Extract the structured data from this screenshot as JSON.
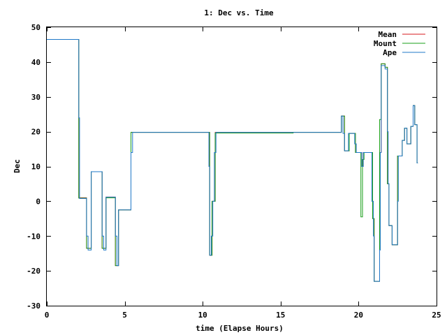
{
  "chart_data": {
    "type": "line",
    "title": "1: Dec vs. Time",
    "xlabel": "time (Elapse Hours)",
    "ylabel": "Dec",
    "xlim": [
      0,
      25
    ],
    "ylim": [
      -30,
      50
    ],
    "xticks": [
      0,
      5,
      10,
      15,
      20,
      25
    ],
    "yticks": [
      -30,
      -20,
      -10,
      0,
      10,
      20,
      30,
      40,
      50
    ],
    "grid": false,
    "legend": "top-right",
    "series": [
      {
        "name": "Mean",
        "color": "#d7191c",
        "points": [
          [
            0,
            46.5
          ],
          [
            2.05,
            46.5
          ],
          [
            2.05,
            1.0
          ],
          [
            2.55,
            1.0
          ],
          [
            2.55,
            -13.5
          ],
          [
            2.85,
            -13.5
          ],
          [
            2.85,
            8.5
          ],
          [
            3.55,
            8.5
          ],
          [
            3.55,
            -13.5
          ],
          [
            3.8,
            -13.5
          ],
          [
            3.8,
            1.2
          ],
          [
            4.4,
            1.2
          ],
          [
            4.4,
            -18.5
          ],
          [
            4.6,
            -18.5
          ],
          [
            4.6,
            -2.5
          ],
          [
            5.4,
            -2.5
          ],
          [
            5.4,
            19.8
          ],
          [
            10.45,
            19.8
          ],
          [
            10.45,
            -15.5
          ],
          [
            10.6,
            -15.5
          ],
          [
            10.6,
            0
          ],
          [
            10.8,
            0
          ],
          [
            10.8,
            19.8
          ],
          [
            15.8,
            19.8
          ],
          [
            15.8,
            19.8
          ],
          [
            18.9,
            19.8
          ],
          [
            18.9,
            24.5
          ],
          [
            19.1,
            24.5
          ],
          [
            19.1,
            14.5
          ],
          [
            19.4,
            14.5
          ],
          [
            19.4,
            19.5
          ],
          [
            19.8,
            19.5
          ],
          [
            19.8,
            14.0
          ],
          [
            20.2,
            14.0
          ],
          [
            20.2,
            10.0
          ],
          [
            20.3,
            10.0
          ],
          [
            20.3,
            14.0
          ],
          [
            20.9,
            14.0
          ],
          [
            20.9,
            -5.0
          ],
          [
            21.0,
            -5.0
          ],
          [
            21.0,
            -23.0
          ],
          [
            21.35,
            -23.0
          ],
          [
            21.35,
            14.0
          ],
          [
            21.45,
            14.0
          ],
          [
            21.45,
            39.5
          ],
          [
            21.7,
            39.5
          ],
          [
            21.7,
            38.5
          ],
          [
            21.85,
            38.5
          ],
          [
            21.85,
            5.0
          ],
          [
            21.95,
            5.0
          ],
          [
            21.95,
            -7.0
          ],
          [
            22.15,
            -7.0
          ],
          [
            22.15,
            -12.5
          ],
          [
            22.5,
            -12.5
          ],
          [
            22.5,
            13.0
          ],
          [
            22.8,
            13.0
          ],
          [
            22.8,
            17.5
          ],
          [
            22.95,
            17.5
          ],
          [
            22.95,
            21.0
          ],
          [
            23.1,
            21.0
          ],
          [
            23.1,
            16.5
          ],
          [
            23.35,
            16.5
          ],
          [
            23.35,
            21.5
          ],
          [
            23.5,
            21.5
          ],
          [
            23.5,
            27.5
          ],
          [
            23.6,
            27.5
          ],
          [
            23.6,
            22.0
          ],
          [
            23.75,
            22.0
          ],
          [
            23.75,
            11.0
          ],
          [
            23.8,
            11.0
          ]
        ]
      },
      {
        "name": "Mount",
        "color": "#1a9f1a",
        "points": [
          [
            0,
            46.5
          ],
          [
            2.05,
            46.5
          ],
          [
            2.05,
            0.9
          ],
          [
            2.55,
            0.9
          ],
          [
            2.55,
            -13.5
          ],
          [
            2.85,
            -13.5
          ],
          [
            2.85,
            8.5
          ],
          [
            3.55,
            8.5
          ],
          [
            3.55,
            -13.5
          ],
          [
            3.8,
            -13.5
          ],
          [
            3.8,
            1.0
          ],
          [
            4.4,
            1.0
          ],
          [
            4.4,
            -18.5
          ],
          [
            4.6,
            -18.5
          ],
          [
            4.6,
            -2.5
          ],
          [
            5.4,
            -2.5
          ],
          [
            5.4,
            19.8
          ],
          [
            10.45,
            19.8
          ],
          [
            10.45,
            -15.5
          ],
          [
            10.6,
            -15.5
          ],
          [
            10.6,
            0
          ],
          [
            10.8,
            0
          ],
          [
            10.8,
            19.6
          ],
          [
            15.8,
            19.6
          ],
          [
            15.8,
            19.8
          ],
          [
            18.9,
            19.8
          ],
          [
            18.9,
            24.5
          ],
          [
            19.1,
            24.5
          ],
          [
            19.1,
            14.5
          ],
          [
            19.4,
            14.5
          ],
          [
            19.4,
            19.5
          ],
          [
            19.8,
            19.5
          ],
          [
            19.8,
            14.0
          ],
          [
            20.15,
            14.0
          ],
          [
            20.15,
            -4.5
          ],
          [
            20.25,
            -4.5
          ],
          [
            20.25,
            12.0
          ],
          [
            20.35,
            12.0
          ],
          [
            20.35,
            14.0
          ],
          [
            20.9,
            14.0
          ],
          [
            20.9,
            -5.0
          ],
          [
            21.0,
            -5.0
          ],
          [
            21.0,
            -23.0
          ],
          [
            21.35,
            -23.0
          ],
          [
            21.35,
            23.5
          ],
          [
            21.45,
            23.5
          ],
          [
            21.45,
            39.5
          ],
          [
            21.7,
            39.5
          ],
          [
            21.7,
            38.5
          ],
          [
            21.85,
            38.5
          ],
          [
            21.85,
            5.0
          ],
          [
            21.95,
            5.0
          ],
          [
            21.95,
            -7.0
          ],
          [
            22.15,
            -7.0
          ],
          [
            22.15,
            -12.5
          ],
          [
            22.5,
            -12.5
          ],
          [
            22.5,
            13.0
          ],
          [
            22.8,
            13.0
          ],
          [
            22.8,
            17.5
          ],
          [
            22.95,
            17.5
          ],
          [
            22.95,
            21.0
          ],
          [
            23.1,
            21.0
          ],
          [
            23.1,
            16.5
          ],
          [
            23.35,
            16.5
          ],
          [
            23.35,
            21.5
          ],
          [
            23.5,
            21.5
          ],
          [
            23.5,
            27.5
          ],
          [
            23.6,
            27.5
          ],
          [
            23.6,
            22.0
          ],
          [
            23.75,
            22.0
          ],
          [
            23.75,
            11.0
          ],
          [
            23.8,
            11.0
          ]
        ]
      },
      {
        "name": "Ape",
        "color": "#1f78c8",
        "points": [
          [
            0,
            46.5
          ],
          [
            2.05,
            46.5
          ],
          [
            2.05,
            24.0
          ],
          [
            2.1,
            24.0
          ],
          [
            2.1,
            0.8
          ],
          [
            2.55,
            0.8
          ],
          [
            2.55,
            -10.0
          ],
          [
            2.65,
            -10.0
          ],
          [
            2.65,
            -14.0
          ],
          [
            2.85,
            -14.0
          ],
          [
            2.85,
            8.5
          ],
          [
            3.55,
            8.5
          ],
          [
            3.55,
            -10.0
          ],
          [
            3.65,
            -10.0
          ],
          [
            3.65,
            -14.0
          ],
          [
            3.8,
            -14.0
          ],
          [
            3.8,
            1.2
          ],
          [
            4.4,
            1.2
          ],
          [
            4.4,
            -10.0
          ],
          [
            4.5,
            -10.0
          ],
          [
            4.5,
            -18.5
          ],
          [
            4.6,
            -18.5
          ],
          [
            4.6,
            -2.5
          ],
          [
            5.4,
            -2.5
          ],
          [
            5.4,
            14.0
          ],
          [
            5.5,
            14.0
          ],
          [
            5.5,
            19.8
          ],
          [
            10.4,
            19.8
          ],
          [
            10.4,
            10.0
          ],
          [
            10.45,
            10.0
          ],
          [
            10.45,
            -15.5
          ],
          [
            10.55,
            -15.5
          ],
          [
            10.55,
            -10.0
          ],
          [
            10.65,
            -10.0
          ],
          [
            10.65,
            0.0
          ],
          [
            10.75,
            0.0
          ],
          [
            10.75,
            14.0
          ],
          [
            10.85,
            14.0
          ],
          [
            10.85,
            19.8
          ],
          [
            18.9,
            19.8
          ],
          [
            18.9,
            24.5
          ],
          [
            19.0,
            24.5
          ],
          [
            19.0,
            19.5
          ],
          [
            19.1,
            19.5
          ],
          [
            19.1,
            14.5
          ],
          [
            19.35,
            14.5
          ],
          [
            19.35,
            19.5
          ],
          [
            19.75,
            19.5
          ],
          [
            19.75,
            16.5
          ],
          [
            19.85,
            16.5
          ],
          [
            19.85,
            14.0
          ],
          [
            20.2,
            14.0
          ],
          [
            20.2,
            10.0
          ],
          [
            20.3,
            10.0
          ],
          [
            20.3,
            14.0
          ],
          [
            20.85,
            14.0
          ],
          [
            20.85,
            0.0
          ],
          [
            20.95,
            0.0
          ],
          [
            20.95,
            -10.0
          ],
          [
            21.0,
            -10.0
          ],
          [
            21.0,
            -23.0
          ],
          [
            21.35,
            -23.0
          ],
          [
            21.35,
            -14.0
          ],
          [
            21.4,
            -14.0
          ],
          [
            21.4,
            14.0
          ],
          [
            21.45,
            14.0
          ],
          [
            21.45,
            39.0
          ],
          [
            21.7,
            39.0
          ],
          [
            21.7,
            38.0
          ],
          [
            21.85,
            38.0
          ],
          [
            21.85,
            20.0
          ],
          [
            21.9,
            20.0
          ],
          [
            21.9,
            5.0
          ],
          [
            21.95,
            5.0
          ],
          [
            21.95,
            -7.0
          ],
          [
            22.15,
            -7.0
          ],
          [
            22.15,
            -12.5
          ],
          [
            22.5,
            -12.5
          ],
          [
            22.5,
            0.0
          ],
          [
            22.55,
            0.0
          ],
          [
            22.55,
            13.0
          ],
          [
            22.8,
            13.0
          ],
          [
            22.8,
            17.5
          ],
          [
            22.95,
            17.5
          ],
          [
            22.95,
            21.0
          ],
          [
            23.1,
            21.0
          ],
          [
            23.1,
            16.5
          ],
          [
            23.35,
            16.5
          ],
          [
            23.35,
            21.5
          ],
          [
            23.5,
            21.5
          ],
          [
            23.5,
            27.5
          ],
          [
            23.6,
            27.5
          ],
          [
            23.6,
            22.0
          ],
          [
            23.75,
            22.0
          ],
          [
            23.75,
            11.0
          ],
          [
            23.8,
            11.0
          ]
        ]
      }
    ]
  }
}
